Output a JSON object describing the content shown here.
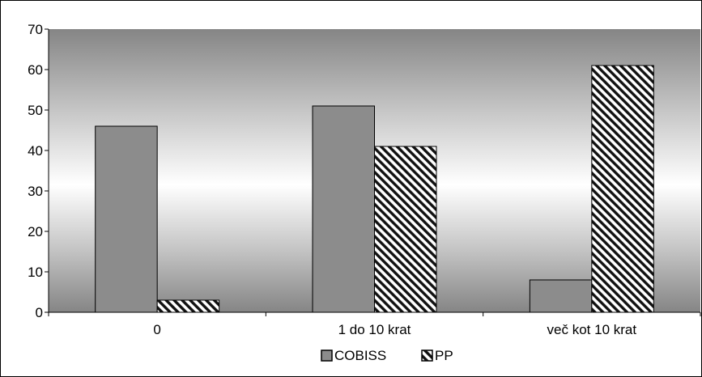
{
  "chart_data": {
    "type": "bar",
    "categories": [
      "0",
      "1 do 10 krat",
      "več kot 10 krat"
    ],
    "series": [
      {
        "name": "COBISS",
        "values": [
          46,
          51,
          8
        ],
        "color": "#8c8c8c",
        "pattern": "solid"
      },
      {
        "name": "PP",
        "values": [
          3,
          41,
          61
        ],
        "color": "#ffffff",
        "pattern": "diagonal-hatch"
      }
    ],
    "ylim": [
      0,
      70
    ],
    "yticks": [
      0,
      10,
      20,
      30,
      40,
      50,
      60,
      70
    ],
    "grid": false,
    "legend_position": "bottom",
    "plot_background": "vertical gradient (dark gray to white to dark gray)"
  }
}
